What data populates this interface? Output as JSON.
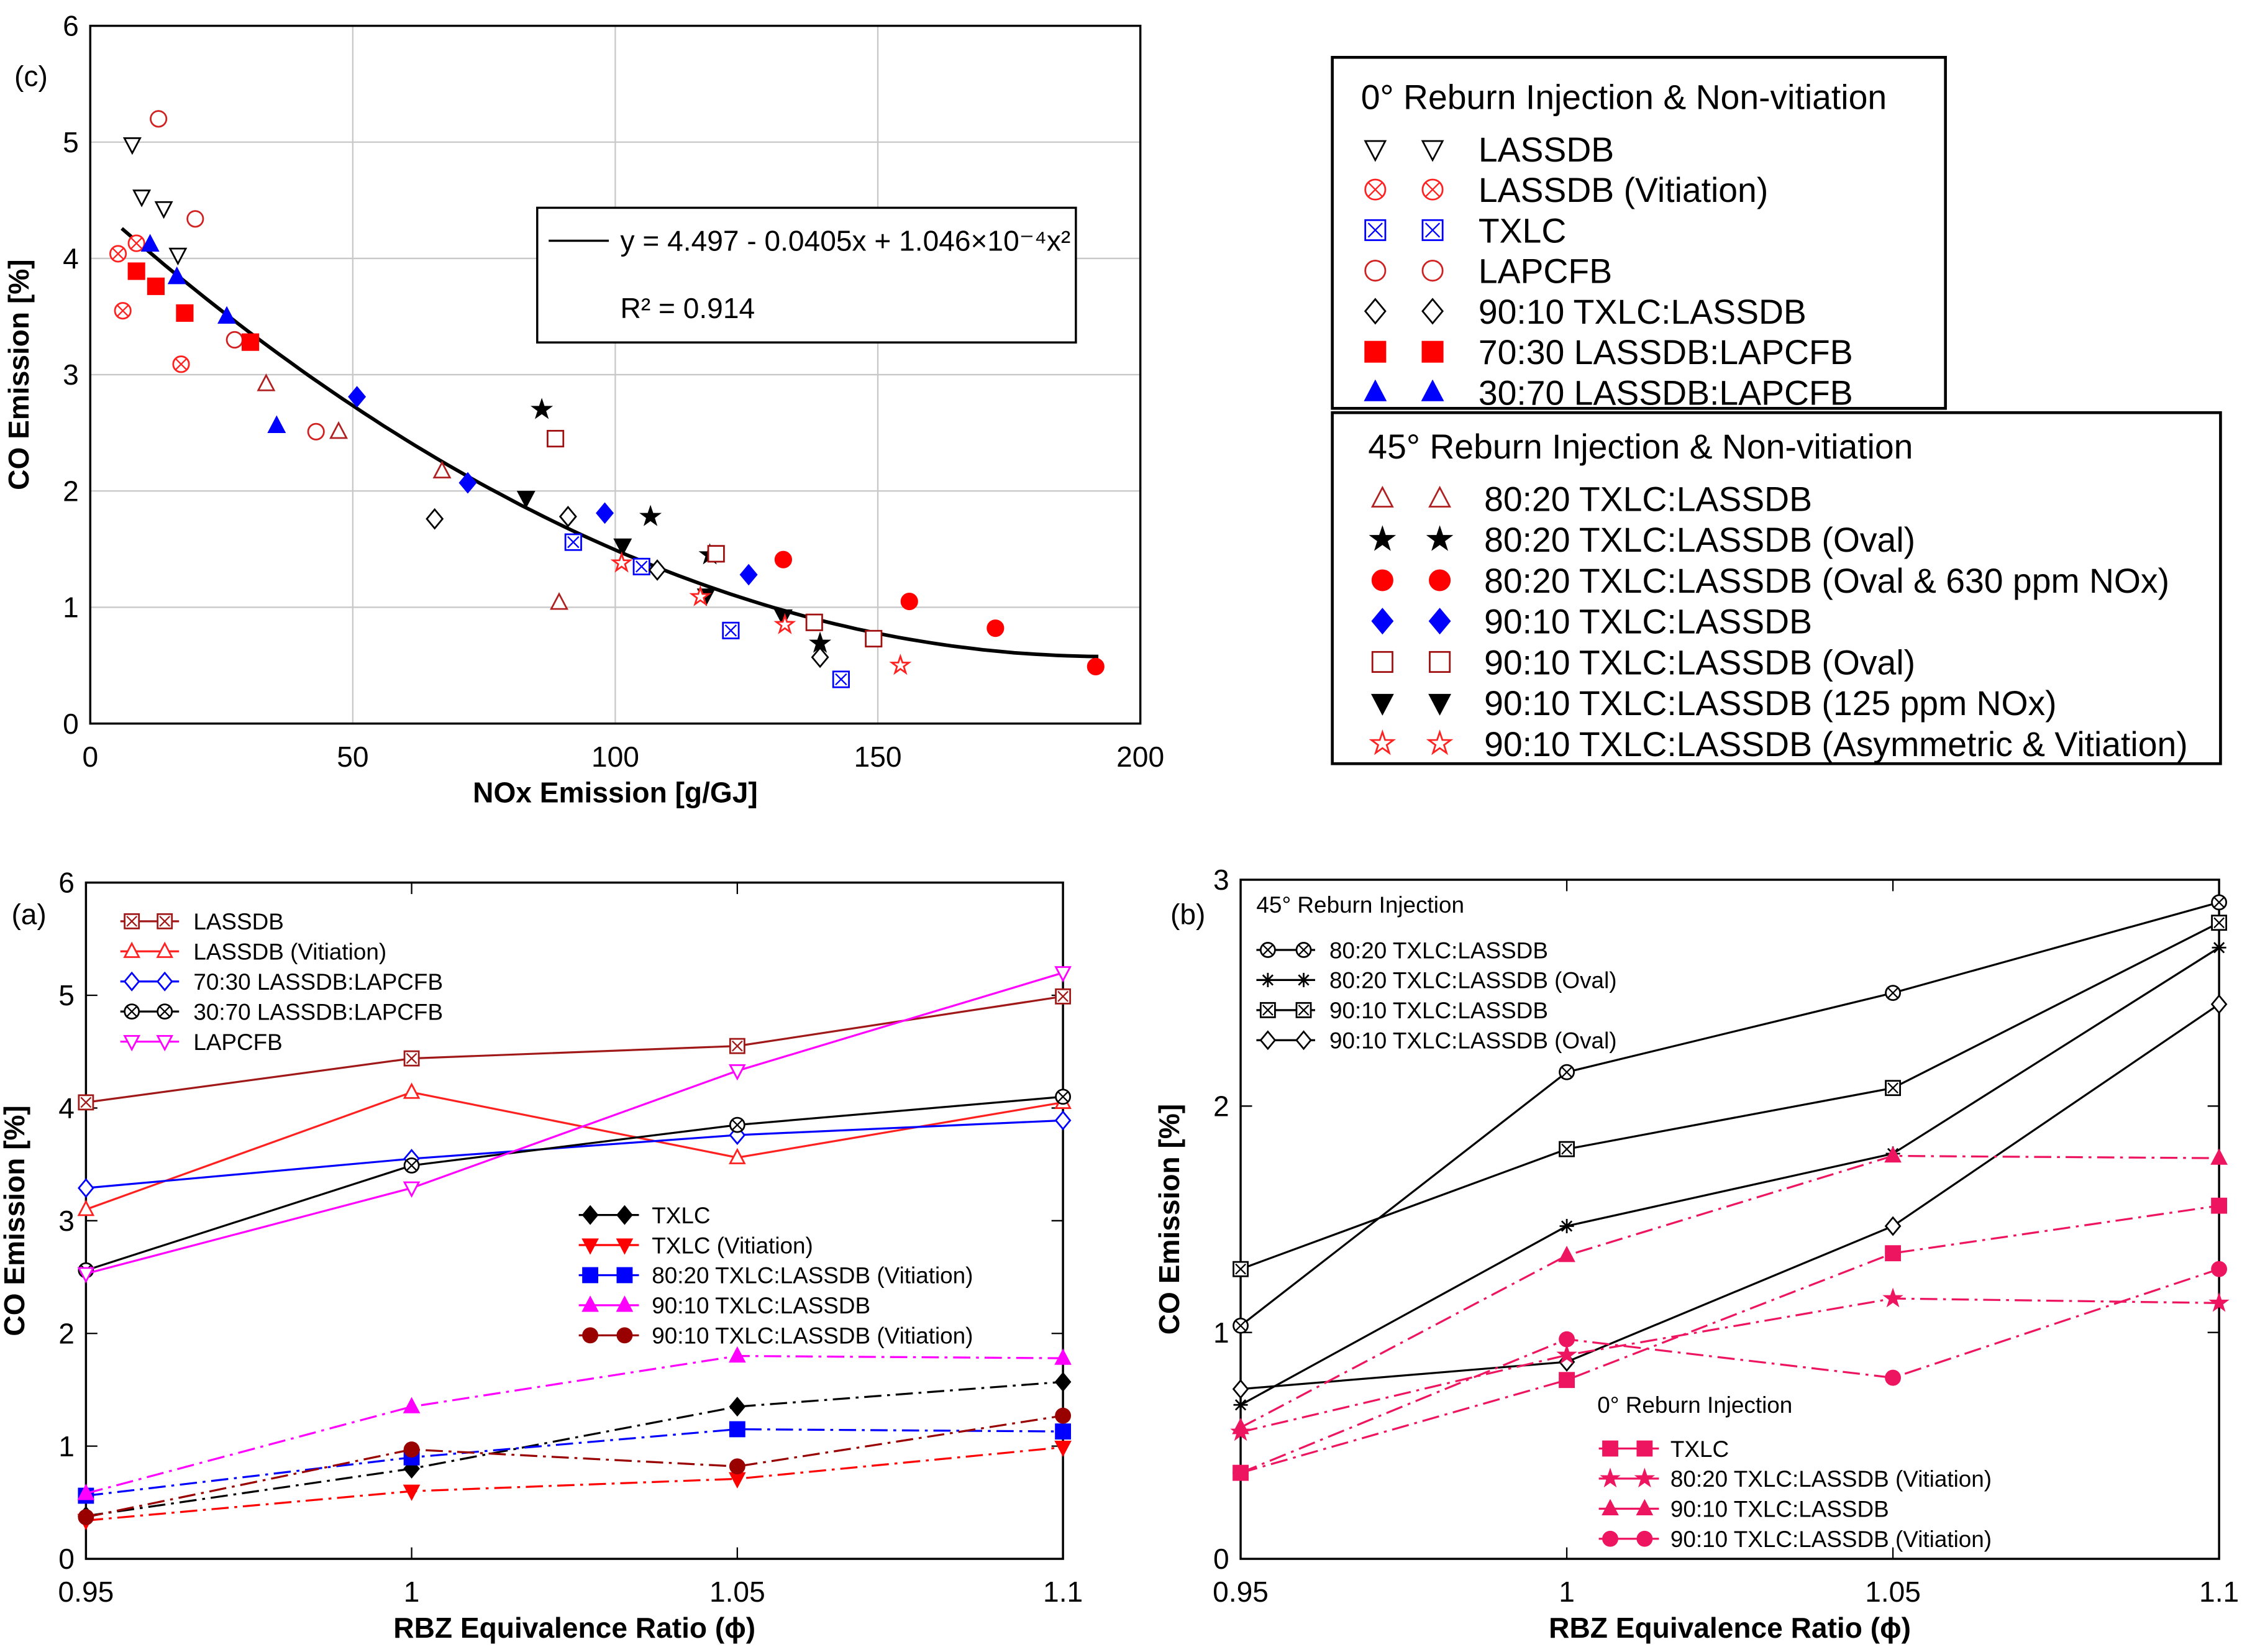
{
  "chart_data": [
    {
      "id": "c",
      "type": "scatter",
      "panel_label": "(c)",
      "xlabel": "NOx Emission [g/GJ]",
      "ylabel": "CO Emission [%]",
      "xlim": [
        0,
        200
      ],
      "ylim": [
        0,
        6
      ],
      "xticks": [
        0,
        50,
        100,
        150,
        200
      ],
      "yticks": [
        0,
        1,
        2,
        3,
        4,
        5,
        6
      ],
      "grid": true,
      "fit": {
        "coeffs": [
          4.497,
          -0.0405,
          0.0001046
        ],
        "xrange": [
          6,
          192
        ],
        "equation": "y = 4.497 - 0.0405x + 1.046×10⁻⁴x²",
        "r2": "R² = 0.914"
      },
      "legend_groups": [
        {
          "title": "0° Reburn Injection & Non-vitiation",
          "placement": "top-right"
        },
        {
          "title": "45° Reburn Injection & Non-vitiation",
          "placement": "right"
        }
      ],
      "series": [
        {
          "group": 0,
          "name": "LASSDB",
          "shape": "tri-down",
          "fill": false,
          "cross": false,
          "color": "#000000",
          "x": [
            8,
            9.8,
            14,
            16.7
          ],
          "y": [
            4.98,
            4.53,
            4.43,
            4.03
          ]
        },
        {
          "group": 0,
          "name": "LASSDB (Vitiation)",
          "shape": "circle",
          "fill": false,
          "cross": true,
          "color": "#ff2020",
          "x": [
            5.3,
            8.8,
            6.2,
            17.3
          ],
          "y": [
            4.04,
            4.13,
            3.55,
            3.09
          ]
        },
        {
          "group": 0,
          "name": "TXLC",
          "shape": "square",
          "fill": false,
          "cross": true,
          "color": "#0000ff",
          "x": [
            92,
            105,
            122,
            143
          ],
          "y": [
            1.56,
            1.35,
            0.8,
            0.38
          ]
        },
        {
          "group": 0,
          "name": "LAPCFB",
          "shape": "circle",
          "fill": false,
          "cross": false,
          "color": "#d02020",
          "x": [
            13,
            20,
            27.5,
            43
          ],
          "y": [
            5.2,
            4.34,
            3.3,
            2.51
          ]
        },
        {
          "group": 0,
          "name": "90:10 TXLC:LASSDB",
          "shape": "diamond",
          "fill": false,
          "cross": false,
          "color": "#000000",
          "x": [
            65.6,
            91,
            108,
            139
          ],
          "y": [
            1.76,
            1.78,
            1.32,
            0.57
          ]
        },
        {
          "group": 0,
          "name": "70:30 LASSDB:LAPCFB",
          "shape": "square",
          "fill": true,
          "cross": false,
          "color": "#ff0000",
          "x": [
            8.8,
            12.5,
            18,
            30.5
          ],
          "y": [
            3.89,
            3.76,
            3.53,
            3.28
          ]
        },
        {
          "group": 0,
          "name": "30:70  LASSDB:LAPCFB",
          "shape": "tri-up",
          "fill": true,
          "cross": false,
          "color": "#0000ff",
          "x": [
            11.4,
            16.5,
            26,
            35.5
          ],
          "y": [
            4.12,
            3.84,
            3.5,
            2.56
          ]
        },
        {
          "group": 1,
          "name": "80:20 TXLC:LASSDB",
          "shape": "tri-up",
          "fill": false,
          "cross": false,
          "color": "#b02020",
          "x": [
            33.5,
            47.3,
            67,
            89.3
          ],
          "y": [
            2.92,
            2.51,
            2.17,
            1.04
          ]
        },
        {
          "group": 1,
          "name": "80:20 TXLC:LASSDB (Oval)",
          "shape": "star",
          "fill": true,
          "cross": false,
          "color": "#000000",
          "x": [
            86,
            106.7,
            118,
            139
          ],
          "y": [
            2.7,
            1.78,
            1.45,
            0.69
          ]
        },
        {
          "group": 1,
          "name": "80:20 TXLC:LASSDB (Oval & 630 ppm NOx)",
          "shape": "circle",
          "fill": true,
          "cross": false,
          "color": "#ff0000",
          "x": [
            132,
            156,
            172.4,
            191.5
          ],
          "y": [
            1.41,
            1.05,
            0.82,
            0.49
          ]
        },
        {
          "group": 1,
          "name": "90:10 TXLC:LASSDB",
          "shape": "diamond",
          "fill": true,
          "cross": false,
          "color": "#0000ff",
          "x": [
            50.8,
            71.9,
            98,
            125.4
          ],
          "y": [
            2.81,
            2.07,
            1.81,
            1.28
          ]
        },
        {
          "group": 1,
          "name": "90:10 TXLC:LASSDB (Oval)",
          "shape": "square",
          "fill": false,
          "cross": false,
          "color": "#a01010",
          "x": [
            88.6,
            119.2,
            137.9,
            149.2
          ],
          "y": [
            2.45,
            1.46,
            0.87,
            0.73
          ]
        },
        {
          "group": 1,
          "name": "90:10 TXLC:LASSDB (125 ppm NOx)",
          "shape": "tri-down",
          "fill": true,
          "cross": false,
          "color": "#000000",
          "x": [
            83,
            101.4,
            117.3,
            132
          ],
          "y": [
            1.94,
            1.53,
            1.1,
            0.92
          ]
        },
        {
          "group": 1,
          "name": "90:10 TXLC:LASSDB (Asymmetric & Vitiation)",
          "shape": "star",
          "fill": false,
          "cross": false,
          "color": "#ff2020",
          "x": [
            101.2,
            116.2,
            132.3,
            154.3
          ],
          "y": [
            1.38,
            1.09,
            0.85,
            0.5
          ]
        }
      ]
    },
    {
      "id": "a",
      "type": "line",
      "panel_label": "(a)",
      "xlabel": "RBZ Equivalence  Ratio (ϕ)",
      "ylabel": "CO Emission [%]",
      "xlim": [
        0.95,
        1.1
      ],
      "ylim": [
        0,
        6
      ],
      "xticks": [
        "0.95",
        "1",
        "1.05",
        "1.1"
      ],
      "yticks": [
        0,
        1,
        2,
        3,
        4,
        5,
        6
      ],
      "grid": false,
      "x": [
        0.95,
        1.0,
        1.05,
        1.1
      ],
      "legend_groups": [
        {
          "title": "",
          "placement": "top-left"
        },
        {
          "title": "",
          "placement": "center"
        }
      ],
      "series": [
        {
          "group": 0,
          "name": "LASSDB",
          "shape": "square",
          "fill": false,
          "cross": true,
          "color": "#a01818",
          "dash": "solid",
          "values": [
            4.05,
            4.44,
            4.55,
            4.99
          ]
        },
        {
          "group": 0,
          "name": "LASSDB (Vitiation)",
          "shape": "tri-up",
          "fill": false,
          "cross": false,
          "color": "#ff2020",
          "dash": "solid",
          "values": [
            3.1,
            4.14,
            3.56,
            4.05
          ]
        },
        {
          "group": 0,
          "name": "70:30 LASSDB:LAPCFB",
          "shape": "diamond",
          "fill": false,
          "cross": false,
          "color": "#0000ff",
          "dash": "solid",
          "values": [
            3.29,
            3.55,
            3.76,
            3.89
          ]
        },
        {
          "group": 0,
          "name": "30:70 LASSDB:LAPCFB",
          "shape": "circle",
          "fill": false,
          "cross": true,
          "color": "#000000",
          "dash": "solid",
          "values": [
            2.56,
            3.49,
            3.85,
            4.1
          ]
        },
        {
          "group": 0,
          "name": "LAPCFB",
          "shape": "tri-down",
          "fill": false,
          "cross": false,
          "color": "#ff00ff",
          "dash": "solid",
          "values": [
            2.53,
            3.29,
            4.33,
            5.2
          ]
        },
        {
          "group": 1,
          "name": "TXLC",
          "shape": "diamond",
          "fill": true,
          "cross": false,
          "color": "#000000",
          "dash": "dashdot",
          "values": [
            0.38,
            0.8,
            1.35,
            1.57
          ]
        },
        {
          "group": 1,
          "name": "TXLC (Vitiation)",
          "shape": "tri-down",
          "fill": true,
          "cross": false,
          "color": "#ff0000",
          "dash": "dashdot",
          "values": [
            0.34,
            0.6,
            0.71,
            0.99
          ]
        },
        {
          "group": 1,
          "name": "80:20 TXLC:LASSDB (Vitiation)",
          "shape": "square",
          "fill": true,
          "cross": false,
          "color": "#0000ff",
          "dash": "dashdot",
          "values": [
            0.56,
            0.9,
            1.15,
            1.13
          ]
        },
        {
          "group": 1,
          "name": "90:10 TXLC:LASSDB",
          "shape": "tri-up",
          "fill": true,
          "cross": false,
          "color": "#ff00ff",
          "dash": "dashdot",
          "values": [
            0.58,
            1.35,
            1.8,
            1.78
          ]
        },
        {
          "group": 1,
          "name": "90:10 TXLC:LASSDB (Vitiation)",
          "shape": "circle",
          "fill": true,
          "cross": false,
          "color": "#990000",
          "dash": "dashdot",
          "values": [
            0.37,
            0.97,
            0.82,
            1.27
          ]
        }
      ]
    },
    {
      "id": "b",
      "type": "line",
      "panel_label": "(b)",
      "xlabel": "RBZ Equivalence  Ratio (ϕ)",
      "ylabel": "CO Emission [%]",
      "xlim": [
        0.95,
        1.1
      ],
      "ylim": [
        0,
        3
      ],
      "xticks": [
        "0.95",
        "1",
        "1.05",
        "1.1"
      ],
      "yticks": [
        0,
        1,
        2,
        3
      ],
      "grid": false,
      "x": [
        0.95,
        1.0,
        1.05,
        1.1
      ],
      "legend_groups": [
        {
          "title": "45° Reburn Injection",
          "placement": "top-left"
        },
        {
          "title": "0° Reburn Injection",
          "placement": "bottom-center"
        }
      ],
      "series": [
        {
          "group": 0,
          "name": "80:20 TXLC:LASSDB",
          "shape": "circle",
          "fill": false,
          "cross": true,
          "color": "#000000",
          "dash": "solid",
          "values": [
            1.03,
            2.15,
            2.5,
            2.9
          ]
        },
        {
          "group": 0,
          "name": "80:20 TXLC:LASSDB (Oval)",
          "shape": "asterisk",
          "fill": false,
          "cross": false,
          "color": "#000000",
          "dash": "solid",
          "values": [
            0.68,
            1.47,
            1.79,
            2.7
          ]
        },
        {
          "group": 0,
          "name": "90:10 TXLC:LASSDB",
          "shape": "square",
          "fill": false,
          "cross": true,
          "color": "#000000",
          "dash": "solid",
          "values": [
            1.28,
            1.81,
            2.08,
            2.81
          ]
        },
        {
          "group": 0,
          "name": "90:10 TXLC:LASSDB (Oval)",
          "shape": "diamond",
          "fill": false,
          "cross": false,
          "color": "#000000",
          "dash": "solid",
          "values": [
            0.75,
            0.87,
            1.47,
            2.45
          ]
        },
        {
          "group": 1,
          "name": "TXLC",
          "shape": "square",
          "fill": true,
          "cross": false,
          "color": "#ee1560",
          "dash": "dashdot",
          "values": [
            0.38,
            0.79,
            1.35,
            1.56
          ]
        },
        {
          "group": 1,
          "name": "80:20 TXLC:LASSDB (Vitiation)",
          "shape": "star",
          "fill": true,
          "cross": false,
          "color": "#ee1560",
          "dash": "dashdot",
          "values": [
            0.56,
            0.9,
            1.15,
            1.13
          ]
        },
        {
          "group": 1,
          "name": "90:10 TXLC:LASSDB",
          "shape": "tri-up",
          "fill": true,
          "cross": false,
          "color": "#ee1560",
          "dash": "dashdot",
          "values": [
            0.58,
            1.34,
            1.78,
            1.77
          ]
        },
        {
          "group": 1,
          "name": "90:10 TXLC:LASSDB (Vitiation)",
          "shape": "circle",
          "fill": true,
          "cross": false,
          "color": "#ee1560",
          "dash": "dashdot",
          "values": [
            0.38,
            0.97,
            0.8,
            1.28
          ]
        }
      ]
    }
  ]
}
